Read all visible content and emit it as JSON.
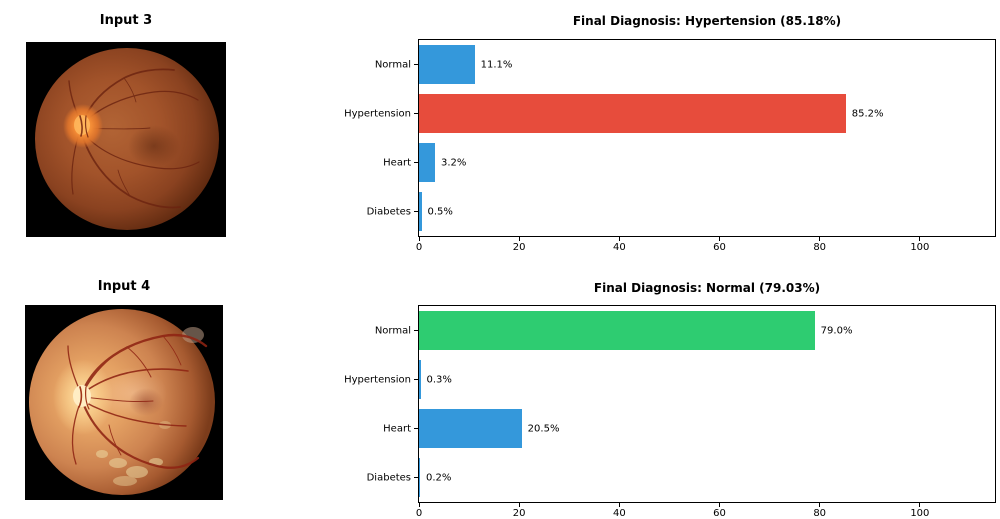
{
  "figure": {
    "background": "#ffffff"
  },
  "panels": [
    {
      "input_label": "Input 3",
      "image_name": "retinal-fundus-photo-dark-orange"
    },
    {
      "input_label": "Input 4",
      "image_name": "retinal-fundus-photo-bright-tan"
    }
  ],
  "chart_data": [
    {
      "type": "bar",
      "orientation": "horizontal",
      "title": "Final Diagnosis: Hypertension (85.18%)",
      "categories": [
        "Normal",
        "Hypertension",
        "Heart",
        "Diabetes"
      ],
      "values": [
        11.1,
        85.2,
        3.2,
        0.5
      ],
      "value_labels": [
        "11.1%",
        "85.2%",
        "3.2%",
        "0.5%"
      ],
      "bar_colors": [
        "#3498db",
        "#e74c3c",
        "#3498db",
        "#3498db"
      ],
      "highlight": {
        "category": "Hypertension",
        "color": "#e74c3c"
      },
      "default_bar_color": "#3498db",
      "x_ticks": [
        0,
        20,
        40,
        60,
        80,
        100
      ],
      "xlim": [
        0,
        115
      ],
      "xlabel": "",
      "ylabel": "",
      "grid": false,
      "legend": false
    },
    {
      "type": "bar",
      "orientation": "horizontal",
      "title": "Final Diagnosis: Normal (79.03%)",
      "categories": [
        "Normal",
        "Hypertension",
        "Heart",
        "Diabetes"
      ],
      "values": [
        79.0,
        0.3,
        20.5,
        0.2
      ],
      "value_labels": [
        "79.0%",
        "0.3%",
        "20.5%",
        "0.2%"
      ],
      "bar_colors": [
        "#2ecc71",
        "#3498db",
        "#3498db",
        "#3498db"
      ],
      "highlight": {
        "category": "Normal",
        "color": "#2ecc71"
      },
      "default_bar_color": "#3498db",
      "x_ticks": [
        0,
        20,
        40,
        60,
        80,
        100
      ],
      "xlim": [
        0,
        115
      ],
      "xlabel": "",
      "ylabel": "",
      "grid": false,
      "legend": false
    }
  ]
}
